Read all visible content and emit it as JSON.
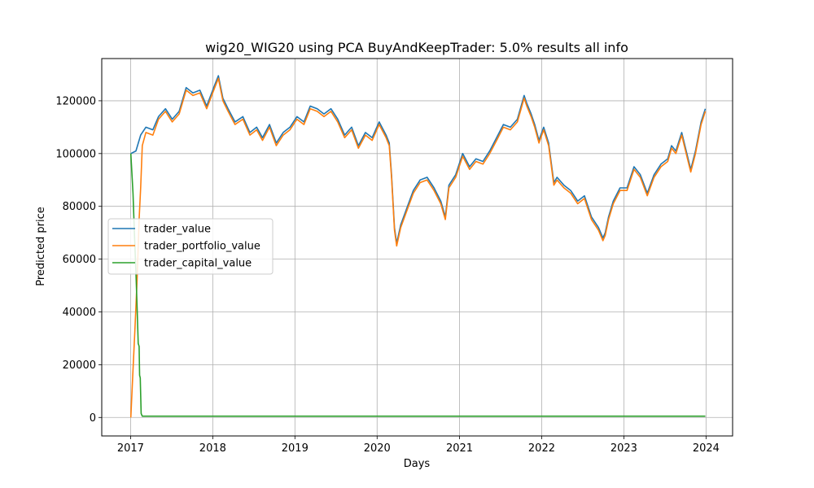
{
  "chart_data": {
    "type": "line",
    "title": "wig20_WIG20 using PCA BuyAndKeepTrader: 5.0% results all info",
    "xlabel": "Days",
    "ylabel": "Predicted price",
    "x_is_date": true,
    "xlim": [
      "2016-08-26",
      "2024-04-28"
    ],
    "ylim": [
      -7000,
      136000
    ],
    "xticks": [
      "2017",
      "2018",
      "2019",
      "2020",
      "2021",
      "2022",
      "2023",
      "2024"
    ],
    "yticks": [
      0,
      20000,
      40000,
      60000,
      80000,
      100000,
      120000
    ],
    "grid": true,
    "legend_position": "center-left",
    "series": [
      {
        "name": "trader_value",
        "color": "#1f77b4",
        "x": [
          "2017-01-02",
          "2017-01-25",
          "2017-02-15",
          "2017-03-10",
          "2017-04-10",
          "2017-05-05",
          "2017-06-05",
          "2017-07-05",
          "2017-08-05",
          "2017-09-05",
          "2017-10-05",
          "2017-11-05",
          "2017-12-05",
          "2018-01-10",
          "2018-01-26",
          "2018-02-15",
          "2018-03-10",
          "2018-04-10",
          "2018-05-15",
          "2018-06-15",
          "2018-07-15",
          "2018-08-10",
          "2018-09-10",
          "2018-10-10",
          "2018-11-10",
          "2018-12-10",
          "2019-01-10",
          "2019-02-10",
          "2019-03-10",
          "2019-04-10",
          "2019-05-10",
          "2019-06-10",
          "2019-07-10",
          "2019-08-10",
          "2019-09-10",
          "2019-10-10",
          "2019-11-10",
          "2019-12-10",
          "2020-01-10",
          "2020-02-10",
          "2020-02-24",
          "2020-03-05",
          "2020-03-18",
          "2020-03-28",
          "2020-04-15",
          "2020-05-15",
          "2020-06-10",
          "2020-07-10",
          "2020-08-10",
          "2020-09-10",
          "2020-10-10",
          "2020-10-30",
          "2020-11-15",
          "2020-12-15",
          "2021-01-15",
          "2021-02-15",
          "2021-03-15",
          "2021-04-15",
          "2021-05-15",
          "2021-06-15",
          "2021-07-15",
          "2021-08-15",
          "2021-09-15",
          "2021-10-15",
          "2021-10-27",
          "2021-11-15",
          "2021-12-01",
          "2021-12-20",
          "2022-01-10",
          "2022-02-01",
          "2022-02-24",
          "2022-03-10",
          "2022-04-10",
          "2022-05-10",
          "2022-06-10",
          "2022-07-10",
          "2022-08-10",
          "2022-09-10",
          "2022-09-30",
          "2022-10-10",
          "2022-10-25",
          "2022-11-15",
          "2022-12-15",
          "2023-01-15",
          "2023-02-15",
          "2023-03-15",
          "2023-04-15",
          "2023-05-15",
          "2023-06-15",
          "2023-07-15",
          "2023-08-01",
          "2023-08-20",
          "2023-09-15",
          "2023-10-05",
          "2023-10-25",
          "2023-11-15",
          "2023-12-10",
          "2023-12-29"
        ],
        "y": [
          100000,
          101000,
          107000,
          110000,
          109000,
          114000,
          117000,
          113000,
          116000,
          125000,
          123000,
          124000,
          118000,
          126000,
          129500,
          121000,
          117000,
          112000,
          114000,
          108000,
          110000,
          106000,
          111000,
          104000,
          108000,
          110000,
          114000,
          112000,
          118000,
          117000,
          115000,
          117000,
          113000,
          107000,
          110000,
          103000,
          108000,
          106000,
          112000,
          107000,
          104000,
          92000,
          72000,
          66000,
          73000,
          80000,
          86000,
          90000,
          91000,
          87000,
          82000,
          76000,
          88000,
          92000,
          100000,
          95000,
          98000,
          97000,
          101000,
          106000,
          111000,
          110000,
          113000,
          122000,
          119000,
          115000,
          111000,
          105000,
          110000,
          104000,
          89000,
          91000,
          88000,
          86000,
          82000,
          84000,
          76000,
          72000,
          68000,
          70000,
          76000,
          82000,
          87000,
          87000,
          95000,
          92000,
          85000,
          92000,
          96000,
          98000,
          103000,
          101000,
          108000,
          101000,
          94000,
          101000,
          112000,
          117000
        ]
      },
      {
        "name": "trader_portfolio_value",
        "color": "#ff7f0e",
        "x": [
          "2017-01-02",
          "2017-01-12",
          "2017-01-20",
          "2017-01-30",
          "2017-02-08",
          "2017-02-15",
          "2017-02-22",
          "2017-03-10",
          "2017-04-10",
          "2017-05-05",
          "2017-06-05",
          "2017-07-05",
          "2017-08-05",
          "2017-09-05",
          "2017-10-05",
          "2017-11-05",
          "2017-12-05",
          "2018-01-10",
          "2018-01-26",
          "2018-02-15",
          "2018-03-10",
          "2018-04-10",
          "2018-05-15",
          "2018-06-15",
          "2018-07-15",
          "2018-08-10",
          "2018-09-10",
          "2018-10-10",
          "2018-11-10",
          "2018-12-10",
          "2019-01-10",
          "2019-02-10",
          "2019-03-10",
          "2019-04-10",
          "2019-05-10",
          "2019-06-10",
          "2019-07-10",
          "2019-08-10",
          "2019-09-10",
          "2019-10-10",
          "2019-11-10",
          "2019-12-10",
          "2020-01-10",
          "2020-02-10",
          "2020-02-24",
          "2020-03-05",
          "2020-03-18",
          "2020-03-28",
          "2020-04-15",
          "2020-05-15",
          "2020-06-10",
          "2020-07-10",
          "2020-08-10",
          "2020-09-10",
          "2020-10-10",
          "2020-10-30",
          "2020-11-15",
          "2020-12-15",
          "2021-01-15",
          "2021-02-15",
          "2021-03-15",
          "2021-04-15",
          "2021-05-15",
          "2021-06-15",
          "2021-07-15",
          "2021-08-15",
          "2021-09-15",
          "2021-10-15",
          "2021-10-27",
          "2021-11-15",
          "2021-12-01",
          "2021-12-20",
          "2022-01-10",
          "2022-02-01",
          "2022-02-24",
          "2022-03-10",
          "2022-04-10",
          "2022-05-10",
          "2022-06-10",
          "2022-07-10",
          "2022-08-10",
          "2022-09-10",
          "2022-09-30",
          "2022-10-10",
          "2022-10-25",
          "2022-11-15",
          "2022-12-15",
          "2023-01-15",
          "2023-02-15",
          "2023-03-15",
          "2023-04-15",
          "2023-05-15",
          "2023-06-15",
          "2023-07-15",
          "2023-08-01",
          "2023-08-20",
          "2023-09-15",
          "2023-10-05",
          "2023-10-25",
          "2023-11-15",
          "2023-12-10",
          "2023-12-29"
        ],
        "y": [
          0,
          18000,
          33000,
          52000,
          75000,
          87000,
          103000,
          108000,
          107000,
          113000,
          116000,
          112000,
          115000,
          124000,
          122000,
          123000,
          117000,
          125000,
          128500,
          120000,
          116000,
          111000,
          113000,
          107000,
          109000,
          105000,
          110000,
          103000,
          107000,
          109000,
          113000,
          111000,
          117000,
          116000,
          114000,
          116000,
          112000,
          106000,
          109000,
          102000,
          107000,
          105000,
          111000,
          106000,
          103000,
          91000,
          71000,
          65000,
          72000,
          79000,
          85000,
          89000,
          90000,
          86000,
          81000,
          75000,
          87000,
          91000,
          99000,
          94000,
          97000,
          96000,
          100000,
          105000,
          110000,
          109000,
          112000,
          121000,
          118000,
          114000,
          110000,
          104000,
          109000,
          103000,
          88000,
          90000,
          87000,
          85000,
          81000,
          83000,
          75000,
          71000,
          67000,
          69000,
          75000,
          81000,
          86000,
          86000,
          94000,
          91000,
          84000,
          91000,
          95000,
          97000,
          102000,
          100000,
          107000,
          100000,
          93000,
          100000,
          111000,
          116000
        ]
      },
      {
        "name": "trader_capital_value",
        "color": "#2ca02c",
        "x": [
          "2017-01-02",
          "2017-01-12",
          "2017-01-18",
          "2017-01-25",
          "2017-01-30",
          "2017-02-04",
          "2017-02-08",
          "2017-02-10",
          "2017-02-13",
          "2017-02-17",
          "2017-02-22",
          "2023-12-29"
        ],
        "y": [
          100000,
          85000,
          70000,
          55000,
          42000,
          28000,
          27000,
          16000,
          15000,
          1500,
          500,
          500
        ]
      }
    ]
  }
}
